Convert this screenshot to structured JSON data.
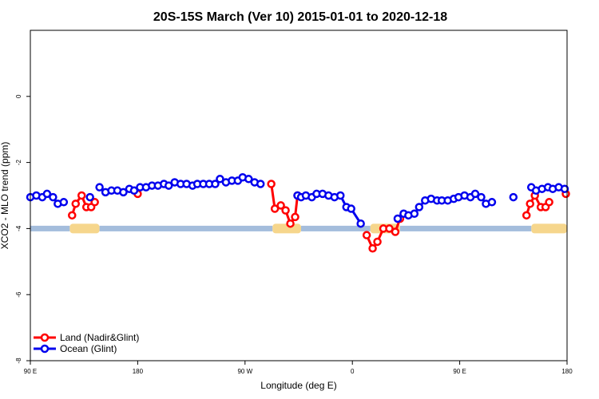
{
  "chart_data": {
    "type": "line",
    "title": "20S-15S March (Ver 10)   2015-01-01 to 2020-12-18",
    "xlabel": "Longitude (deg E)",
    "ylabel": "XCO2 - MLO trend (ppm)",
    "x_ticks": [
      {
        "value": 90,
        "label": "90 E"
      },
      {
        "value": 180,
        "label": "180"
      },
      {
        "value": 270,
        "label": "90 W"
      },
      {
        "value": 360,
        "label": "0"
      },
      {
        "value": 450,
        "label": "90 E"
      },
      {
        "value": 540,
        "label": "180"
      }
    ],
    "y_ticks": [
      {
        "value": 0,
        "label": "0"
      },
      {
        "value": -2,
        "label": "-2"
      },
      {
        "value": -4,
        "label": "-4"
      },
      {
        "value": -6,
        "label": "-6"
      },
      {
        "value": -8,
        "label": "-8"
      }
    ],
    "xlim": [
      90,
      540
    ],
    "ylim": [
      -8,
      2
    ],
    "grid": false,
    "legend_position": "bottom-left",
    "series": [
      {
        "name": "Land (Nadir&Glint)",
        "color": "#ff0000",
        "segments": [
          [
            [
              125,
              -3.6
            ],
            [
              128,
              -3.25
            ],
            [
              133,
              -3.0
            ],
            [
              137,
              -3.35
            ],
            [
              141,
              -3.35
            ],
            [
              144,
              -3.2
            ]
          ],
          [
            [
              180,
              -2.95
            ]
          ],
          [
            [
              292,
              -2.65
            ],
            [
              295,
              -3.4
            ],
            [
              300,
              -3.3
            ],
            [
              304,
              -3.45
            ],
            [
              308,
              -3.85
            ],
            [
              312,
              -3.65
            ],
            [
              314,
              -3.0
            ]
          ],
          [
            [
              372,
              -4.2
            ],
            [
              377,
              -4.6
            ],
            [
              381,
              -4.4
            ],
            [
              386,
              -4.0
            ],
            [
              391,
              -4.0
            ],
            [
              396,
              -4.1
            ],
            [
              400,
              -3.7
            ]
          ],
          [
            [
              506,
              -3.6
            ],
            [
              509,
              -3.25
            ],
            [
              513,
              -3.0
            ],
            [
              518,
              -3.35
            ],
            [
              522,
              -3.35
            ],
            [
              525,
              -3.2
            ]
          ],
          [
            [
              539,
              -2.95
            ]
          ]
        ]
      },
      {
        "name": "Ocean (Glint)",
        "color": "#0000ee",
        "segments": [
          [
            [
              90,
              -3.05
            ],
            [
              95,
              -3.0
            ],
            [
              100,
              -3.05
            ],
            [
              104,
              -2.95
            ],
            [
              109,
              -3.05
            ],
            [
              113,
              -3.25
            ],
            [
              118,
              -3.2
            ]
          ],
          [
            [
              140,
              -3.05
            ]
          ],
          [
            [
              148,
              -2.75
            ],
            [
              153,
              -2.9
            ],
            [
              158,
              -2.85
            ],
            [
              163,
              -2.85
            ],
            [
              168,
              -2.9
            ],
            [
              173,
              -2.8
            ],
            [
              177,
              -2.85
            ],
            [
              182,
              -2.75
            ],
            [
              187,
              -2.75
            ],
            [
              192,
              -2.7
            ],
            [
              197,
              -2.7
            ],
            [
              202,
              -2.65
            ],
            [
              206,
              -2.7
            ],
            [
              211,
              -2.6
            ],
            [
              216,
              -2.65
            ],
            [
              221,
              -2.65
            ],
            [
              226,
              -2.7
            ],
            [
              230,
              -2.65
            ],
            [
              235,
              -2.65
            ],
            [
              240,
              -2.65
            ],
            [
              245,
              -2.65
            ],
            [
              249,
              -2.5
            ],
            [
              254,
              -2.6
            ],
            [
              259,
              -2.55
            ],
            [
              264,
              -2.55
            ],
            [
              268,
              -2.45
            ],
            [
              273,
              -2.5
            ],
            [
              278,
              -2.6
            ],
            [
              283,
              -2.65
            ]
          ],
          [
            [
              314,
              -3.0
            ],
            [
              317,
              -3.05
            ],
            [
              321,
              -3.0
            ],
            [
              326,
              -3.05
            ],
            [
              330,
              -2.95
            ],
            [
              335,
              -2.95
            ],
            [
              340,
              -3.0
            ],
            [
              345,
              -3.05
            ],
            [
              350,
              -3.0
            ],
            [
              355,
              -3.35
            ],
            [
              359,
              -3.4
            ],
            [
              367,
              -3.85
            ]
          ],
          [
            [
              398,
              -3.7
            ],
            [
              403,
              -3.55
            ],
            [
              407,
              -3.6
            ],
            [
              412,
              -3.55
            ],
            [
              416,
              -3.35
            ],
            [
              421,
              -3.15
            ],
            [
              426,
              -3.1
            ],
            [
              431,
              -3.15
            ],
            [
              435,
              -3.15
            ],
            [
              440,
              -3.15
            ],
            [
              445,
              -3.1
            ],
            [
              449,
              -3.05
            ],
            [
              454,
              -3.0
            ],
            [
              459,
              -3.05
            ],
            [
              463,
              -2.95
            ],
            [
              468,
              -3.05
            ],
            [
              472,
              -3.25
            ],
            [
              477,
              -3.2
            ]
          ],
          [
            [
              495,
              -3.05
            ]
          ],
          [
            [
              510,
              -2.75
            ],
            [
              514,
              -2.85
            ],
            [
              519,
              -2.8
            ],
            [
              524,
              -2.75
            ],
            [
              528,
              -2.8
            ],
            [
              533,
              -2.75
            ],
            [
              538,
              -2.8
            ]
          ]
        ]
      }
    ],
    "land_bands": [
      [
        123,
        148
      ],
      [
        293,
        317
      ],
      [
        375,
        400
      ],
      [
        510,
        545
      ]
    ]
  }
}
